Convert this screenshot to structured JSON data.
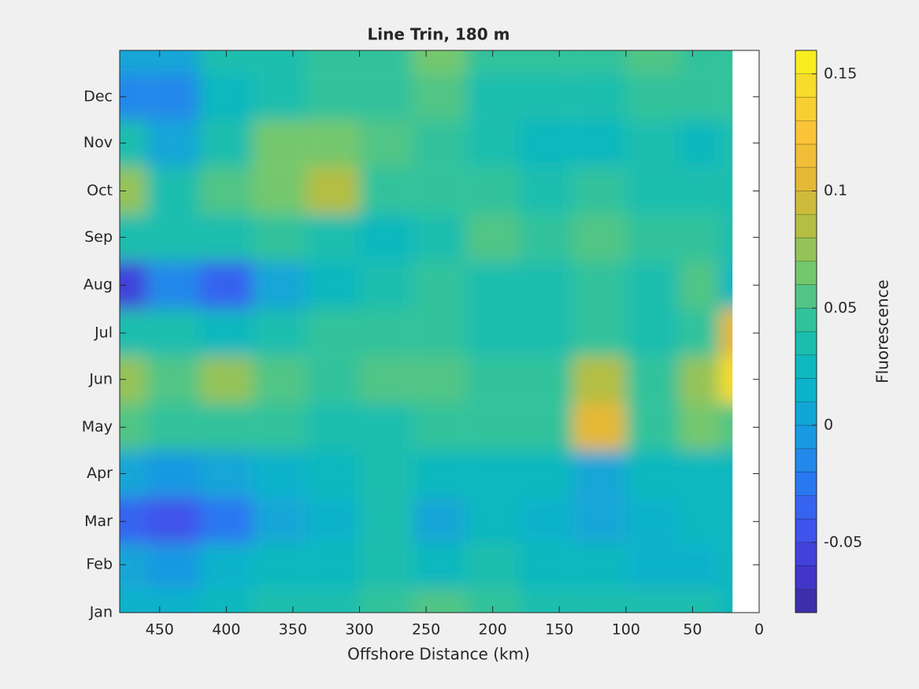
{
  "chart_data": {
    "type": "contourf",
    "title": "Line Trin, 180 m",
    "xlabel": "Offshore Distance (km)",
    "x": [
      480,
      440,
      400,
      360,
      320,
      280,
      240,
      200,
      160,
      120,
      80,
      40,
      20
    ],
    "y": [
      1,
      32,
      60,
      91,
      121,
      152,
      182,
      213,
      244,
      274,
      305,
      335,
      365
    ],
    "z": [
      [
        0.01,
        0.01,
        0.02,
        0.03,
        0.035,
        0.04,
        0.05,
        0.04,
        0.035,
        0.035,
        0.035,
        0.035,
        0.02
      ],
      [
        0.0,
        -0.01,
        0.01,
        0.02,
        0.025,
        0.03,
        0.025,
        0.03,
        0.02,
        0.02,
        0.015,
        0.015,
        0.02
      ],
      [
        -0.04,
        -0.045,
        -0.025,
        0.0,
        0.015,
        0.03,
        0.0,
        0.02,
        0.01,
        0.0,
        0.01,
        0.02,
        0.02
      ],
      [
        0.0,
        -0.01,
        0.0,
        0.01,
        0.02,
        0.03,
        0.02,
        0.02,
        0.02,
        0.0,
        0.02,
        0.025,
        0.02
      ],
      [
        0.05,
        0.04,
        0.04,
        0.04,
        0.035,
        0.035,
        0.045,
        0.04,
        0.04,
        0.1,
        0.04,
        0.06,
        0.05
      ],
      [
        0.07,
        0.05,
        0.07,
        0.05,
        0.04,
        0.05,
        0.05,
        0.045,
        0.04,
        0.08,
        0.04,
        0.07,
        0.14
      ],
      [
        0.03,
        0.03,
        0.02,
        0.03,
        0.04,
        0.045,
        0.04,
        0.035,
        0.035,
        0.04,
        0.03,
        0.04,
        0.1
      ],
      [
        -0.06,
        -0.02,
        -0.04,
        0.0,
        0.02,
        0.035,
        0.04,
        0.035,
        0.035,
        0.04,
        0.03,
        0.05,
        0.02
      ],
      [
        0.03,
        0.03,
        0.03,
        0.04,
        0.035,
        0.02,
        0.035,
        0.05,
        0.04,
        0.05,
        0.04,
        0.04,
        0.03
      ],
      [
        0.07,
        0.03,
        0.05,
        0.06,
        0.08,
        0.045,
        0.04,
        0.04,
        0.035,
        0.04,
        0.03,
        0.035,
        0.03
      ],
      [
        0.03,
        0.0,
        0.03,
        0.06,
        0.06,
        0.05,
        0.04,
        0.03,
        0.025,
        0.025,
        0.03,
        0.025,
        0.03
      ],
      [
        -0.02,
        -0.02,
        0.02,
        0.035,
        0.045,
        0.04,
        0.05,
        0.035,
        0.03,
        0.03,
        0.04,
        0.04,
        0.04
      ],
      [
        0.0,
        0.0,
        0.03,
        0.035,
        0.04,
        0.04,
        0.06,
        0.04,
        0.04,
        0.04,
        0.05,
        0.04,
        0.04
      ]
    ],
    "xlim": [
      480,
      0
    ],
    "xticks": [
      450,
      400,
      350,
      300,
      250,
      200,
      150,
      100,
      50,
      0
    ],
    "ylim": [
      1,
      365
    ],
    "yticks": [
      {
        "value": 1,
        "label": "Jan"
      },
      {
        "value": 32,
        "label": "Feb"
      },
      {
        "value": 60,
        "label": "Mar"
      },
      {
        "value": 91,
        "label": "Apr"
      },
      {
        "value": 121,
        "label": "May"
      },
      {
        "value": 152,
        "label": "Jun"
      },
      {
        "value": 182,
        "label": "Jul"
      },
      {
        "value": 213,
        "label": "Aug"
      },
      {
        "value": 244,
        "label": "Sep"
      },
      {
        "value": 274,
        "label": "Oct"
      },
      {
        "value": 305,
        "label": "Nov"
      },
      {
        "value": 335,
        "label": "Dec"
      }
    ],
    "colorbar": {
      "label": "Fluorescence",
      "clim": [
        -0.08,
        0.16
      ],
      "level_step": 0.01,
      "ticks": [
        -0.05,
        0,
        0.05,
        0.1,
        0.15
      ]
    },
    "colormap": [
      "#3a2c9e",
      "#4238d0",
      "#3f55ee",
      "#2a78f2",
      "#1a97e2",
      "#0db0cf",
      "#10bcb6",
      "#3cc493",
      "#7ec767",
      "#b8bd40",
      "#e5b836",
      "#fbc23a",
      "#f5d62e",
      "#f8f51c"
    ]
  }
}
